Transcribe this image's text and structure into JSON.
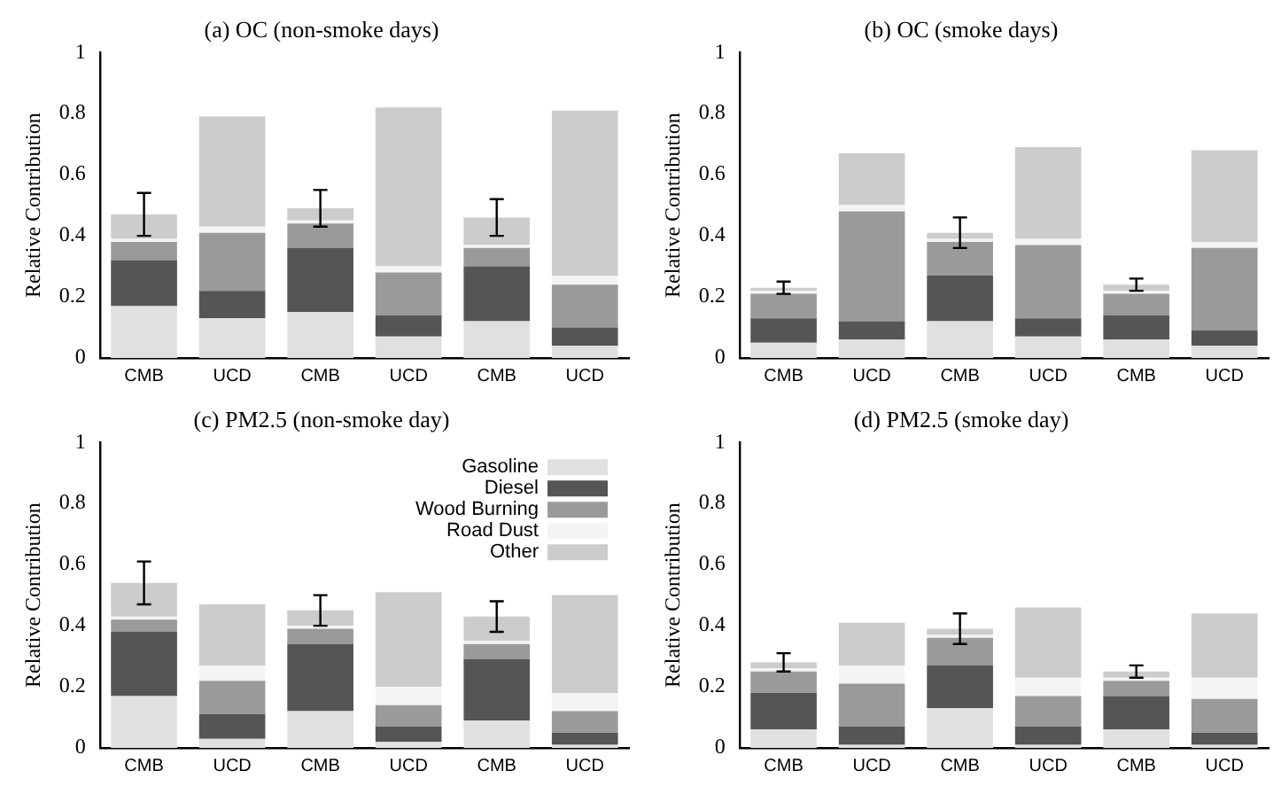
{
  "chart_data": [
    {
      "type": "bar",
      "stacked": true,
      "title": "(a) OC (non-smoke days)",
      "ylabel": "Relative Contribution",
      "categories": [
        "CMB",
        "UCD",
        "CMB",
        "UCD",
        "CMB",
        "UCD"
      ],
      "ylim": [
        0,
        1
      ],
      "yticks": [
        0,
        0.2,
        0.4,
        0.6,
        0.8,
        1
      ],
      "grid": false,
      "legend": false,
      "series": [
        {
          "color": "#e0e0e0",
          "values": [
            0.17,
            0.13,
            0.15,
            0.07,
            0.12,
            0.04
          ]
        },
        {
          "color": "#555555",
          "values": [
            0.15,
            0.09,
            0.21,
            0.07,
            0.18,
            0.06
          ]
        },
        {
          "color": "#9a9a9a",
          "values": [
            0.06,
            0.19,
            0.08,
            0.14,
            0.06,
            0.14
          ]
        },
        {
          "color": "#f4f4f4",
          "values": [
            0.01,
            0.02,
            0.01,
            0.02,
            0.01,
            0.03
          ]
        },
        {
          "color": "#cccccc",
          "values": [
            0.08,
            0.36,
            0.04,
            0.52,
            0.09,
            0.54
          ],
          "errors": [
            0.07,
            null,
            0.06,
            null,
            0.06,
            null
          ]
        }
      ]
    },
    {
      "type": "bar",
      "stacked": true,
      "title": "(b) OC (smoke days)",
      "ylabel": "Relative Contribution",
      "categories": [
        "CMB",
        "UCD",
        "CMB",
        "UCD",
        "CMB",
        "UCD"
      ],
      "ylim": [
        0,
        1
      ],
      "yticks": [
        0,
        0.2,
        0.4,
        0.6,
        0.8,
        1
      ],
      "grid": false,
      "legend": false,
      "series": [
        {
          "color": "#e0e0e0",
          "values": [
            0.05,
            0.06,
            0.12,
            0.07,
            0.06,
            0.04
          ]
        },
        {
          "color": "#555555",
          "values": [
            0.08,
            0.06,
            0.15,
            0.06,
            0.08,
            0.05
          ]
        },
        {
          "color": "#9a9a9a",
          "values": [
            0.08,
            0.36,
            0.11,
            0.24,
            0.07,
            0.27
          ]
        },
        {
          "color": "#f4f4f4",
          "values": [
            0.01,
            0.02,
            0.01,
            0.02,
            0.01,
            0.02
          ]
        },
        {
          "color": "#cccccc",
          "values": [
            0.01,
            0.17,
            0.02,
            0.3,
            0.02,
            0.3
          ],
          "errors": [
            0.02,
            null,
            0.05,
            null,
            0.02,
            null
          ]
        }
      ]
    },
    {
      "type": "bar",
      "stacked": true,
      "title": "(c) PM2.5 (non-smoke day)",
      "ylabel": "Relative Contribution",
      "categories": [
        "CMB",
        "UCD",
        "CMB",
        "UCD",
        "CMB",
        "UCD"
      ],
      "ylim": [
        0,
        1
      ],
      "yticks": [
        0,
        0.2,
        0.4,
        0.6,
        0.8,
        1
      ],
      "grid": false,
      "legend": "top right",
      "series": [
        {
          "name": "Gasoline",
          "color": "#e0e0e0",
          "values": [
            0.17,
            0.03,
            0.12,
            0.02,
            0.09,
            0.01
          ]
        },
        {
          "name": "Diesel",
          "color": "#555555",
          "values": [
            0.21,
            0.08,
            0.22,
            0.05,
            0.2,
            0.04
          ]
        },
        {
          "name": "Wood Burning",
          "color": "#9a9a9a",
          "values": [
            0.04,
            0.11,
            0.05,
            0.07,
            0.05,
            0.07
          ]
        },
        {
          "name": "Road Dust",
          "color": "#f4f4f4",
          "values": [
            0.01,
            0.05,
            0.01,
            0.06,
            0.01,
            0.06
          ]
        },
        {
          "name": "Other",
          "color": "#cccccc",
          "values": [
            0.11,
            0.2,
            0.05,
            0.31,
            0.08,
            0.32
          ],
          "errors": [
            0.07,
            null,
            0.05,
            null,
            0.05,
            null
          ]
        }
      ]
    },
    {
      "type": "bar",
      "stacked": true,
      "title": "(d) PM2.5 (smoke day)",
      "ylabel": "Relative Contribution",
      "categories": [
        "CMB",
        "UCD",
        "CMB",
        "UCD",
        "CMB",
        "UCD"
      ],
      "ylim": [
        0,
        1
      ],
      "yticks": [
        0,
        0.2,
        0.4,
        0.6,
        0.8,
        1
      ],
      "grid": false,
      "legend": false,
      "series": [
        {
          "color": "#e0e0e0",
          "values": [
            0.06,
            0.01,
            0.13,
            0.01,
            0.06,
            0.01
          ]
        },
        {
          "color": "#555555",
          "values": [
            0.12,
            0.06,
            0.14,
            0.06,
            0.11,
            0.04
          ]
        },
        {
          "color": "#9a9a9a",
          "values": [
            0.07,
            0.14,
            0.09,
            0.1,
            0.05,
            0.11
          ]
        },
        {
          "color": "#f4f4f4",
          "values": [
            0.01,
            0.06,
            0.01,
            0.06,
            0.01,
            0.07
          ]
        },
        {
          "color": "#cccccc",
          "values": [
            0.02,
            0.14,
            0.02,
            0.23,
            0.02,
            0.21
          ],
          "errors": [
            0.03,
            null,
            0.05,
            null,
            0.02,
            null
          ]
        }
      ]
    }
  ]
}
